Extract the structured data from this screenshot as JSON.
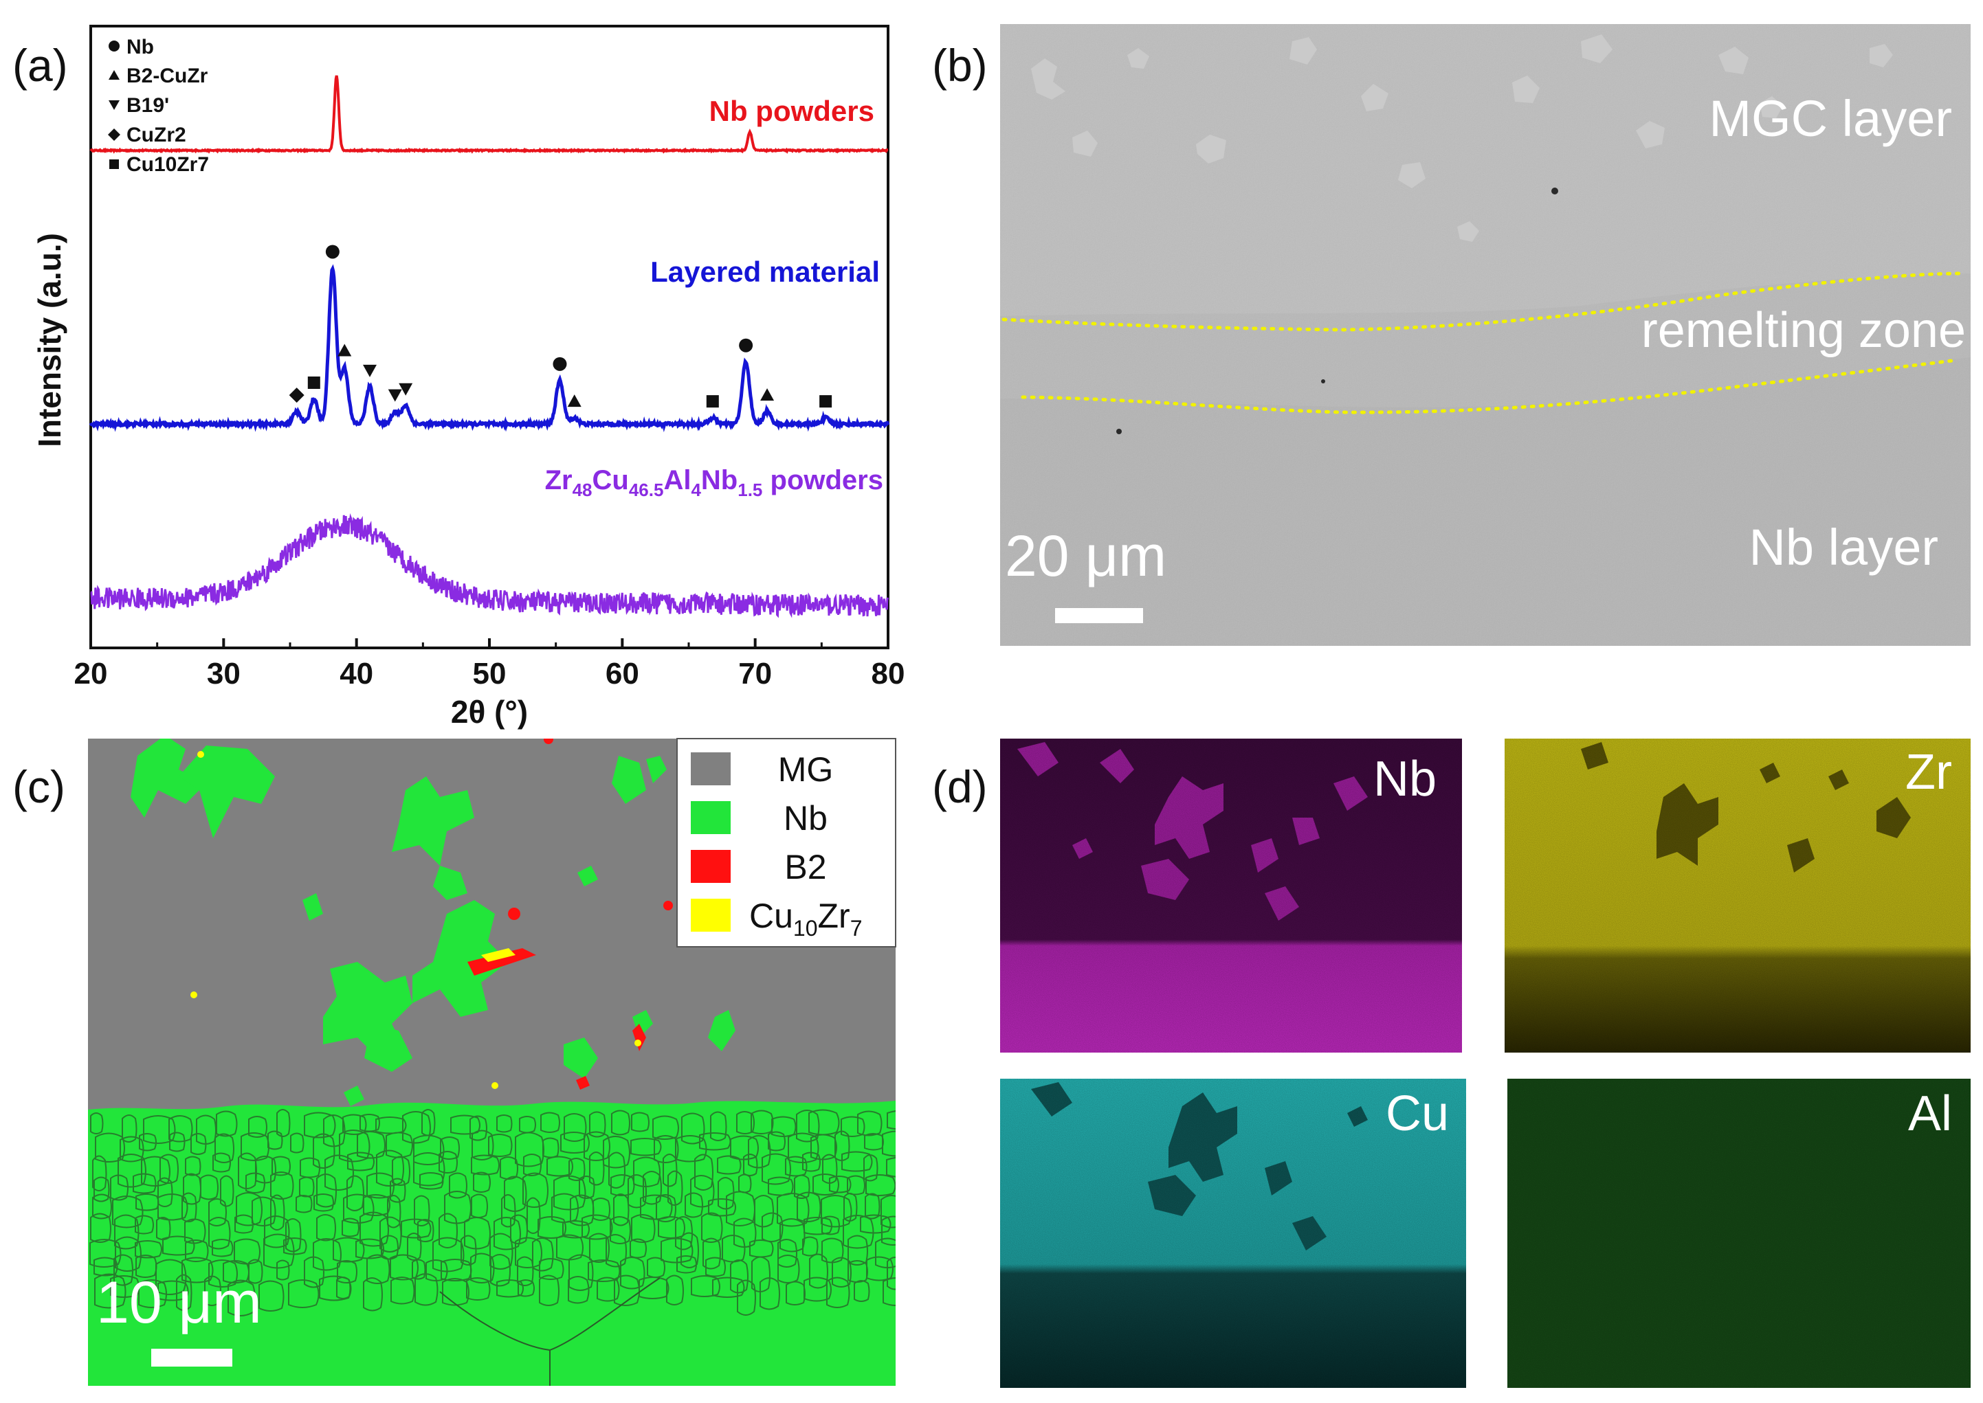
{
  "panels": {
    "a": {
      "label": "(a)",
      "legend": [
        "Nb",
        "B2-CuZr",
        "B19'",
        "CuZr2",
        "Cu10Zr7"
      ],
      "chart_data": {
        "type": "line",
        "title": "",
        "xlabel": "2θ (°)",
        "ylabel": "Intensity (a.u.)",
        "xlim": [
          20,
          80
        ],
        "xticks": [
          20,
          30,
          40,
          50,
          60,
          70,
          80
        ],
        "yticks": "none (arbitrary units)",
        "series": [
          {
            "name": "Nb powders",
            "color": "#e8141c",
            "baseline": 0.8,
            "peaks": [
              {
                "x": 38.5,
                "height": 0.12
              },
              {
                "x": 69.6,
                "height": 0.03
              }
            ]
          },
          {
            "name": "Layered material",
            "color": "#1515d6",
            "baseline": 0.36,
            "peaks": [
              {
                "x": 38.2,
                "height": 0.25,
                "phase": "Nb"
              },
              {
                "x": 39.1,
                "height": 0.09,
                "phase": "B2-CuZr"
              },
              {
                "x": 41.0,
                "height": 0.06,
                "phase": "B19'"
              },
              {
                "x": 42.9,
                "height": 0.02,
                "phase": "B19'"
              },
              {
                "x": 43.7,
                "height": 0.03,
                "phase": "B19'"
              },
              {
                "x": 35.5,
                "height": 0.02,
                "phase": "CuZr2"
              },
              {
                "x": 36.8,
                "height": 0.04,
                "phase": "Cu10Zr7"
              },
              {
                "x": 55.3,
                "height": 0.07,
                "phase": "Nb"
              },
              {
                "x": 56.4,
                "height": 0.01,
                "phase": "B2-CuZr"
              },
              {
                "x": 66.8,
                "height": 0.01,
                "phase": "Cu10Zr7"
              },
              {
                "x": 69.3,
                "height": 0.1,
                "phase": "Nb"
              },
              {
                "x": 70.9,
                "height": 0.02,
                "phase": "B2-CuZr"
              },
              {
                "x": 75.3,
                "height": 0.01,
                "phase": "Cu10Zr7"
              }
            ]
          },
          {
            "name": "Zr48Cu46.5Al4Nb1.5 powders",
            "color": "#8a2be2",
            "baseline": 0.08,
            "broad_hump": {
              "center": 39.0,
              "height": 0.12
            }
          }
        ]
      }
    },
    "b": {
      "label": "(b)",
      "region_labels": {
        "top": "MGC layer",
        "middle": "remelting zone",
        "bottom": "Nb layer"
      },
      "scale_bar": "20 μm"
    },
    "c": {
      "label": "(c)",
      "legend": [
        {
          "name": "MG",
          "color": "#808080"
        },
        {
          "name": "Nb",
          "color": "#22e53a"
        },
        {
          "name": "B2",
          "color": "#ff1010"
        },
        {
          "name": "Cu10Zr7",
          "color": "#ffff00"
        }
      ],
      "scale_bar": "10 μm"
    },
    "d": {
      "label": "(d)",
      "maps": [
        {
          "element": "Nb",
          "color": "#c028c0"
        },
        {
          "element": "Zr",
          "color": "#d4cc18"
        },
        {
          "element": "Cu",
          "color": "#28c8c8"
        },
        {
          "element": "Al",
          "color": "#1e8a1e"
        }
      ]
    }
  }
}
